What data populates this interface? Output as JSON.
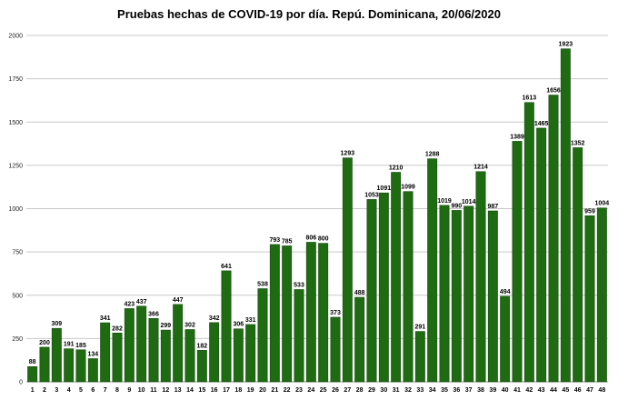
{
  "chart_data": {
    "type": "bar",
    "title": "Pruebas hechas de COVID-19 por día. Repú. Dominicana, 20/06/2020",
    "xlabel": "",
    "ylabel": "",
    "ylim": [
      0,
      2000
    ],
    "yticks": [
      0,
      250,
      500,
      750,
      1000,
      1250,
      1500,
      1750,
      2000
    ],
    "grid": true,
    "legend": "none",
    "bar_color": "#1e6b12",
    "bar_border_color": "#0f3d08",
    "categories": [
      "1",
      "2",
      "3",
      "4",
      "5",
      "6",
      "7",
      "8",
      "9",
      "10",
      "11",
      "12",
      "13",
      "14",
      "15",
      "16",
      "17",
      "18",
      "19",
      "20",
      "21",
      "22",
      "23",
      "24",
      "25",
      "26",
      "27",
      "28",
      "29",
      "30",
      "31",
      "32",
      "33",
      "34",
      "35",
      "36",
      "37",
      "38",
      "39",
      "40",
      "41",
      "42",
      "43",
      "44",
      "45",
      "46",
      "47",
      "48"
    ],
    "values": [
      88,
      200,
      309,
      191,
      185,
      134,
      341,
      282,
      423,
      437,
      366,
      299,
      447,
      302,
      182,
      342,
      641,
      306,
      331,
      538,
      793,
      785,
      533,
      806,
      800,
      373,
      1293,
      488,
      1053,
      1091,
      1210,
      1099,
      291,
      1288,
      1019,
      990,
      1014,
      1214,
      987,
      494,
      1389,
      1613,
      1465,
      1656,
      1923,
      1352,
      959,
      1004
    ]
  }
}
